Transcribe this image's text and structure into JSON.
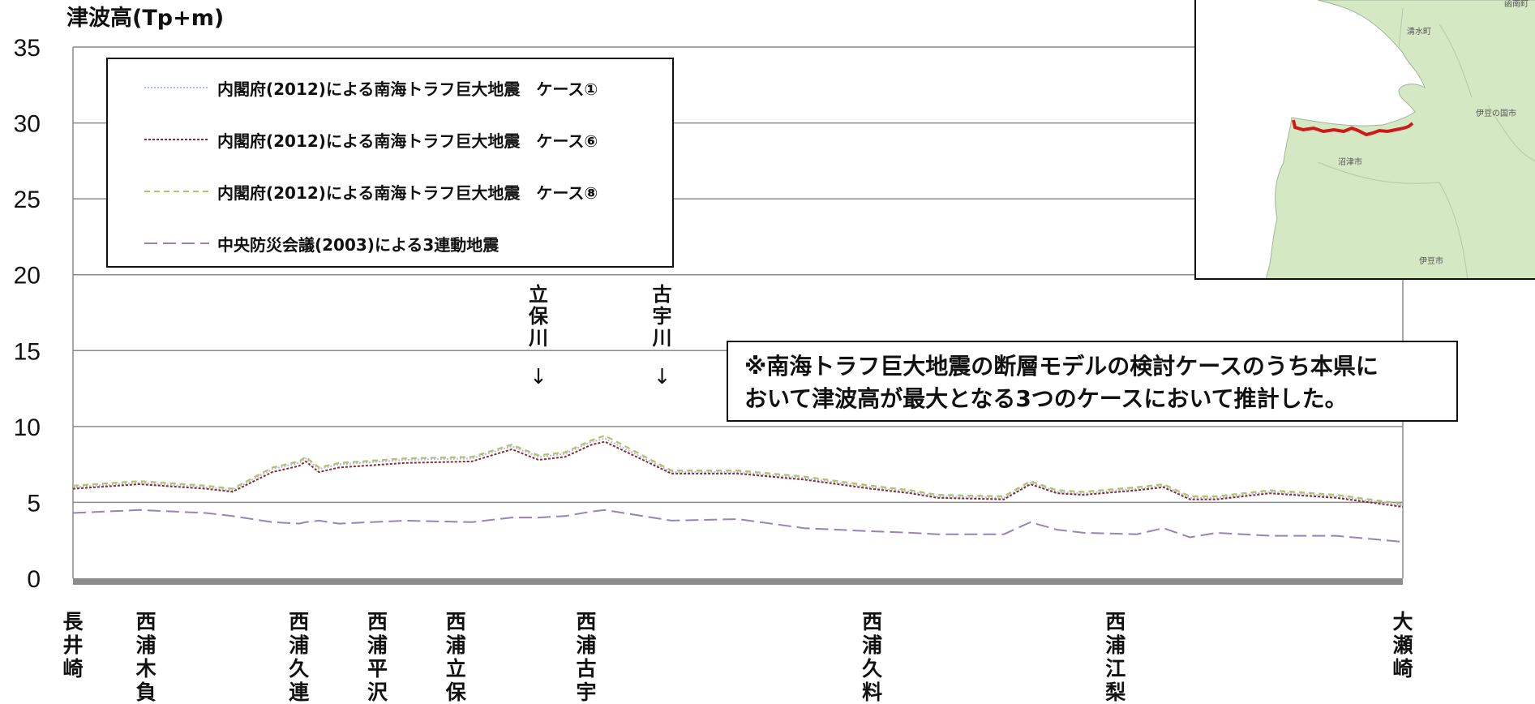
{
  "chart_data": {
    "type": "line",
    "ylabel": "津波高(Tp+m)",
    "ylim": [
      0,
      35
    ],
    "yticks": [
      "0",
      "5",
      "10",
      "15",
      "20",
      "25",
      "30",
      "35"
    ],
    "grid": true,
    "legend_position": "top-left",
    "x_locations": [
      "長井崎",
      "西浦木負",
      "西浦久連",
      "西浦平沢",
      "西浦立保",
      "西浦古宇",
      "西浦久料",
      "西浦江梨",
      "大瀬崎"
    ],
    "x_location_positions": [
      0,
      0.055,
      0.17,
      0.229,
      0.288,
      0.386,
      0.601,
      0.784,
      1.0
    ],
    "river_labels": [
      {
        "name": "立保川",
        "x": 0.35
      },
      {
        "name": "古宇川",
        "x": 0.443
      }
    ],
    "annotation": [
      "※南海トラフ巨大地震の断層モデルの検討ケースのうち本県に",
      "おいて津波高が最大となる3つのケースにおいて推計した。"
    ],
    "x": [
      0.0,
      0.05,
      0.1,
      0.12,
      0.15,
      0.17,
      0.175,
      0.185,
      0.2,
      0.25,
      0.3,
      0.33,
      0.35,
      0.37,
      0.39,
      0.4,
      0.45,
      0.5,
      0.55,
      0.6,
      0.63,
      0.65,
      0.7,
      0.72,
      0.74,
      0.76,
      0.8,
      0.82,
      0.84,
      0.86,
      0.9,
      0.95,
      1.0
    ],
    "series": [
      {
        "name": "内閣府(2012)による南海トラフ巨大地震　ケース①",
        "color": "#a9bde3",
        "values": [
          6.0,
          6.3,
          6.0,
          5.8,
          7.2,
          7.6,
          7.9,
          7.2,
          7.5,
          7.8,
          7.9,
          8.7,
          8.0,
          8.2,
          9.0,
          9.2,
          7.0,
          7.0,
          6.6,
          6.0,
          5.7,
          5.4,
          5.3,
          6.3,
          5.7,
          5.6,
          5.9,
          6.1,
          5.3,
          5.3,
          5.7,
          5.4,
          4.8
        ]
      },
      {
        "name": "内閣府(2012)による南海トラフ巨大地震　ケース⑥",
        "color": "#8a2a2a",
        "values": [
          5.9,
          6.2,
          5.9,
          5.7,
          7.0,
          7.4,
          7.7,
          7.0,
          7.3,
          7.6,
          7.7,
          8.5,
          7.8,
          8.0,
          8.8,
          9.0,
          6.9,
          6.9,
          6.5,
          5.9,
          5.6,
          5.3,
          5.2,
          6.2,
          5.6,
          5.5,
          5.8,
          6.0,
          5.2,
          5.2,
          5.6,
          5.3,
          4.7
        ]
      },
      {
        "name": "内閣府(2012)による南海トラフ巨大地震　ケース⑧",
        "color": "#b5c26a",
        "values": [
          6.1,
          6.4,
          6.1,
          5.9,
          7.3,
          7.7,
          8.0,
          7.3,
          7.6,
          7.9,
          8.0,
          8.8,
          8.1,
          8.3,
          9.1,
          9.4,
          7.1,
          7.1,
          6.7,
          6.1,
          5.8,
          5.5,
          5.4,
          6.4,
          5.8,
          5.7,
          6.0,
          6.2,
          5.4,
          5.4,
          5.8,
          5.5,
          4.9
        ]
      },
      {
        "name": "中央防災会議(2003)による3連動地震",
        "color": "#9a82b8",
        "values": [
          4.3,
          4.5,
          4.3,
          4.1,
          3.7,
          3.6,
          3.7,
          3.8,
          3.6,
          3.8,
          3.7,
          4.0,
          4.0,
          4.1,
          4.4,
          4.5,
          3.8,
          3.9,
          3.3,
          3.1,
          3.0,
          2.9,
          2.9,
          3.7,
          3.2,
          3.0,
          2.9,
          3.3,
          2.7,
          3.0,
          2.8,
          2.8,
          2.4
        ]
      }
    ]
  },
  "inset_map": {
    "labels": [
      "清水町",
      "伊豆の国市",
      "沼津市",
      "伊豆市",
      "函南町"
    ],
    "land_color": "#d3e8c3",
    "route_color": "#d01818"
  }
}
